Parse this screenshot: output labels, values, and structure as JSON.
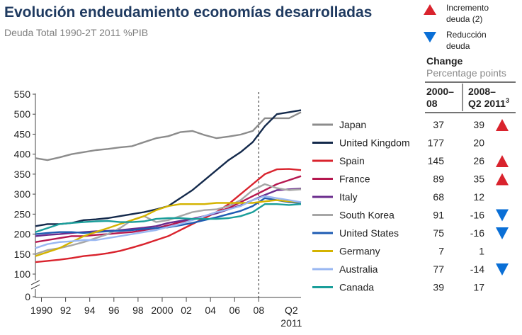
{
  "title": "Evolución endeudamiento economías desarrolladas",
  "subtitle": "Deuda Total 1990-2T 2011 %PIB",
  "key": {
    "up_label_1": "Incremento",
    "up_label_2": "deuda (2)",
    "down_label_1": "Reducción",
    "down_label_2": "deuda",
    "up_color": "#d9232d",
    "down_color": "#0a6fd6"
  },
  "table": {
    "change_title": "Change",
    "change_sub": "Percentage points",
    "col1_line1": "2000–",
    "col1_line2": "08",
    "col2_line1": "2008–",
    "col2_line2": "Q2 2011",
    "col2_sup": "3"
  },
  "chart_data": {
    "type": "line",
    "title": "Evolución endeudamiento economías desarrolladas",
    "subtitle": "Deuda Total 1990-2T 2011 %PIB",
    "xlabel": "",
    "ylabel": "",
    "ylim": [
      0,
      550
    ],
    "axis_break": [
      0,
      100
    ],
    "y_ticks": [
      0,
      100,
      150,
      200,
      250,
      300,
      350,
      400,
      450,
      500,
      550
    ],
    "x_ticks": [
      "1990",
      "92",
      "94",
      "96",
      "98",
      "2000",
      "02",
      "04",
      "06",
      "08",
      "Q2",
      "2011"
    ],
    "xlim": [
      1989.5,
      2011.5
    ],
    "reference_line_x": 2008,
    "grid": false,
    "legend_position": "right",
    "series": [
      {
        "name": "Japan",
        "color": "#8c8c8c",
        "change_2000_08": "37",
        "change_2008_q2_2011": "39",
        "direction": "up",
        "x": [
          1989.5,
          1990.5,
          1991.5,
          1992.5,
          1993.5,
          1994.5,
          1995.5,
          1996.5,
          1997.5,
          1998.5,
          1999.5,
          2000.5,
          2001.5,
          2002.5,
          2003.5,
          2004.5,
          2005.5,
          2006.5,
          2007.5,
          2008.5,
          2009.5,
          2010.5,
          2011.5
        ],
        "y": [
          390,
          385,
          392,
          400,
          405,
          410,
          413,
          417,
          420,
          430,
          440,
          445,
          455,
          458,
          448,
          440,
          444,
          449,
          458,
          490,
          490,
          490,
          505
        ]
      },
      {
        "name": "United Kingdom",
        "color": "#13294b",
        "change_2000_08": "177",
        "change_2008_q2_2011": "20",
        "direction": "none",
        "x": [
          1989.5,
          1990.5,
          1991.5,
          1992.5,
          1993.5,
          1994.5,
          1995.5,
          1996.5,
          1997.5,
          1998.5,
          1999.5,
          2000.5,
          2001.5,
          2002.5,
          2003.5,
          2004.5,
          2005.5,
          2006.5,
          2007.5,
          2008.5,
          2009.5,
          2010.5,
          2011.5
        ],
        "y": [
          220,
          225,
          225,
          228,
          235,
          237,
          240,
          245,
          250,
          255,
          262,
          270,
          290,
          310,
          335,
          360,
          385,
          405,
          430,
          470,
          500,
          505,
          510
        ]
      },
      {
        "name": "Spain",
        "color": "#d9232d",
        "change_2000_08": "145",
        "change_2008_q2_2011": "26",
        "direction": "up",
        "x": [
          1989.5,
          1990.5,
          1991.5,
          1992.5,
          1993.5,
          1994.5,
          1995.5,
          1996.5,
          1997.5,
          1998.5,
          1999.5,
          2000.5,
          2001.5,
          2002.5,
          2003.5,
          2004.5,
          2005.5,
          2006.5,
          2007.5,
          2008.5,
          2009.5,
          2010.5,
          2011.5
        ],
        "y": [
          130,
          133,
          136,
          140,
          145,
          148,
          152,
          158,
          166,
          175,
          185,
          195,
          210,
          225,
          240,
          255,
          275,
          300,
          325,
          350,
          362,
          363,
          360
        ]
      },
      {
        "name": "France",
        "color": "#b5174f",
        "change_2000_08": "89",
        "change_2008_q2_2011": "35",
        "direction": "up",
        "x": [
          1989.5,
          1990.5,
          1991.5,
          1992.5,
          1993.5,
          1994.5,
          1995.5,
          1996.5,
          1997.5,
          1998.5,
          1999.5,
          2000.5,
          2001.5,
          2002.5,
          2003.5,
          2004.5,
          2005.5,
          2006.5,
          2007.5,
          2008.5,
          2009.5,
          2010.5,
          2011.5
        ],
        "y": [
          180,
          185,
          190,
          195,
          195,
          198,
          200,
          203,
          205,
          210,
          215,
          222,
          230,
          238,
          245,
          255,
          265,
          280,
          295,
          310,
          325,
          335,
          345
        ]
      },
      {
        "name": "Italy",
        "color": "#6a2b8c",
        "change_2000_08": "68",
        "change_2008_q2_2011": "12",
        "direction": "none",
        "x": [
          1989.5,
          1990.5,
          1991.5,
          1992.5,
          1993.5,
          1994.5,
          1995.5,
          1996.5,
          1997.5,
          1998.5,
          1999.5,
          2000.5,
          2001.5,
          2002.5,
          2003.5,
          2004.5,
          2005.5,
          2006.5,
          2007.5,
          2008.5,
          2009.5,
          2010.5,
          2011.5
        ],
        "y": [
          195,
          198,
          200,
          203,
          205,
          207,
          208,
          210,
          213,
          216,
          220,
          228,
          233,
          238,
          245,
          252,
          262,
          272,
          285,
          298,
          310,
          312,
          314
        ]
      },
      {
        "name": "South Korea",
        "color": "#a6a6a6",
        "change_2000_08": "91",
        "change_2008_q2_2011": "-16",
        "direction": "down",
        "x": [
          1989.5,
          1990.5,
          1991.5,
          1992.5,
          1993.5,
          1994.5,
          1995.5,
          1996.5,
          1997.5,
          1998.5,
          1999.5,
          2000.5,
          2001.5,
          2002.5,
          2003.5,
          2004.5,
          2005.5,
          2006.5,
          2007.5,
          2008.5,
          2009.5,
          2010.5,
          2011.5
        ],
        "y": [
          150,
          160,
          165,
          172,
          180,
          190,
          200,
          215,
          235,
          245,
          230,
          235,
          245,
          255,
          260,
          262,
          270,
          285,
          310,
          325,
          315,
          310,
          312
        ]
      },
      {
        "name": "United States",
        "color": "#1e5cb3",
        "change_2000_08": "75",
        "change_2008_q2_2011": "-16",
        "direction": "down",
        "x": [
          1989.5,
          1990.5,
          1991.5,
          1992.5,
          1993.5,
          1994.5,
          1995.5,
          1996.5,
          1997.5,
          1998.5,
          1999.5,
          2000.5,
          2001.5,
          2002.5,
          2003.5,
          2004.5,
          2005.5,
          2006.5,
          2007.5,
          2008.5,
          2009.5,
          2010.5,
          2011.5
        ],
        "y": [
          200,
          203,
          205,
          205,
          203,
          205,
          207,
          208,
          210,
          213,
          215,
          217,
          222,
          228,
          235,
          242,
          250,
          258,
          270,
          290,
          285,
          280,
          278
        ]
      },
      {
        "name": "Germany",
        "color": "#d4b300",
        "change_2000_08": "7",
        "change_2008_q2_2011": "1",
        "direction": "none",
        "x": [
          1989.5,
          1990.5,
          1991.5,
          1992.5,
          1993.5,
          1994.5,
          1995.5,
          1996.5,
          1997.5,
          1998.5,
          1999.5,
          2000.5,
          2001.5,
          2002.5,
          2003.5,
          2004.5,
          2005.5,
          2006.5,
          2007.5,
          2008.5,
          2009.5,
          2010.5,
          2011.5
        ],
        "y": [
          145,
          155,
          165,
          180,
          195,
          205,
          215,
          225,
          235,
          245,
          260,
          270,
          275,
          275,
          275,
          278,
          278,
          278,
          278,
          282,
          285,
          282,
          280
        ]
      },
      {
        "name": "Australia",
        "color": "#99b7f2",
        "change_2000_08": "77",
        "change_2008_q2_2011": "-14",
        "direction": "down",
        "x": [
          1989.5,
          1990.5,
          1991.5,
          1992.5,
          1993.5,
          1994.5,
          1995.5,
          1996.5,
          1997.5,
          1998.5,
          1999.5,
          2000.5,
          2001.5,
          2002.5,
          2003.5,
          2004.5,
          2005.5,
          2006.5,
          2007.5,
          2008.5,
          2009.5,
          2010.5,
          2011.5
        ],
        "y": [
          165,
          175,
          180,
          182,
          185,
          185,
          190,
          195,
          200,
          205,
          210,
          218,
          225,
          235,
          245,
          255,
          262,
          270,
          285,
          295,
          290,
          285,
          280
        ]
      },
      {
        "name": "Canada",
        "color": "#1a9e9a",
        "change_2000_08": "39",
        "change_2008_q2_2011": "17",
        "direction": "none",
        "x": [
          1989.5,
          1990.5,
          1991.5,
          1992.5,
          1993.5,
          1994.5,
          1995.5,
          1996.5,
          1997.5,
          1998.5,
          1999.5,
          2000.5,
          2001.5,
          2002.5,
          2003.5,
          2004.5,
          2005.5,
          2006.5,
          2007.5,
          2008.5,
          2009.5,
          2010.5,
          2011.5
        ],
        "y": [
          205,
          215,
          225,
          228,
          230,
          232,
          233,
          230,
          230,
          232,
          238,
          240,
          240,
          238,
          238,
          238,
          240,
          245,
          255,
          275,
          275,
          273,
          275
        ]
      }
    ]
  }
}
